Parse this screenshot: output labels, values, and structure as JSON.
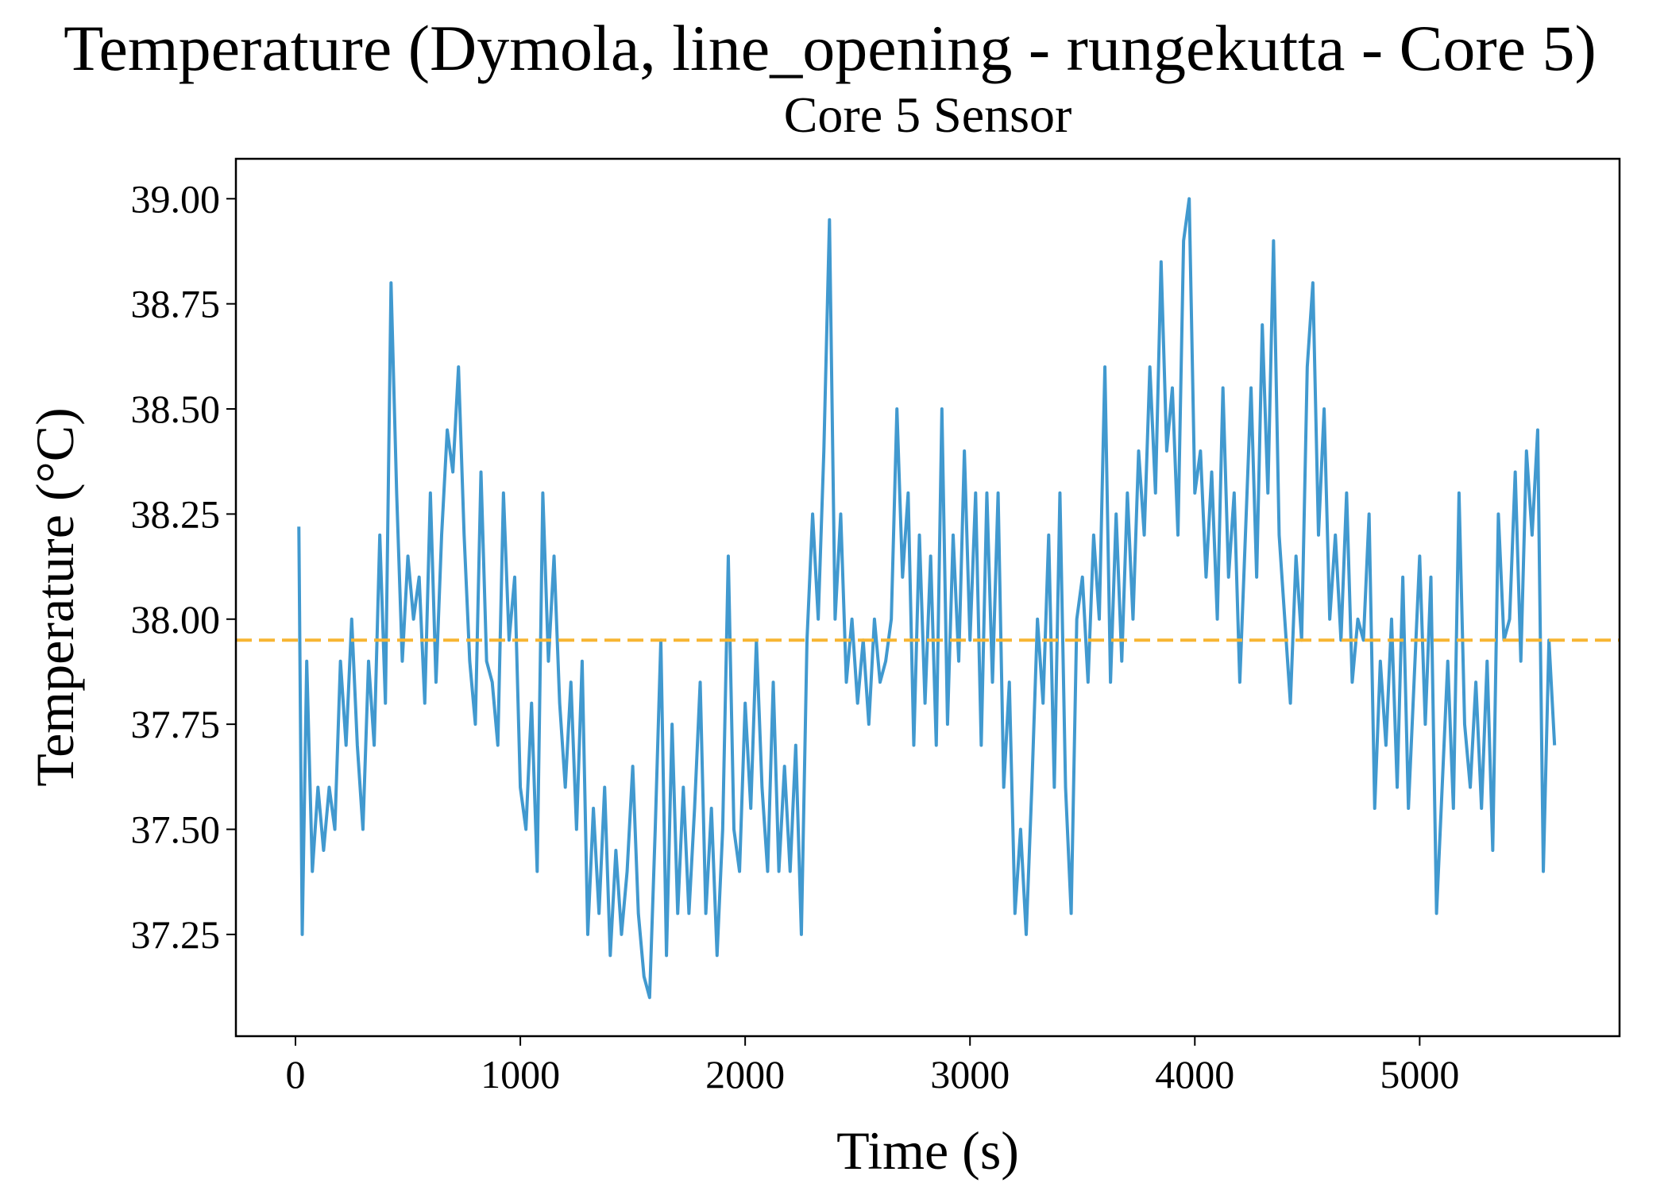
{
  "chart_data": {
    "type": "line",
    "title": "Temperature (Dymola, line_opening - rungekutta - Core 5)",
    "subtitle": "Core 5 Sensor",
    "x_label": "Time (s)",
    "y_label": "Temperature (°C)",
    "xlim": [
      -265,
      5889
    ],
    "ylim": [
      37.008,
      39.095
    ],
    "xticks": [
      0,
      1000,
      2000,
      3000,
      4000,
      5000
    ],
    "yticks": [
      {
        "value": 37.25,
        "label": "37.25"
      },
      {
        "value": 37.5,
        "label": "37.50"
      },
      {
        "value": 37.75,
        "label": "37.75"
      },
      {
        "value": 38,
        "label": "38.00"
      },
      {
        "value": 38.25,
        "label": "38.25"
      },
      {
        "value": 38.5,
        "label": "38.50"
      },
      {
        "value": 38.75,
        "label": "38.75"
      },
      {
        "value": 39,
        "label": "39.00"
      }
    ],
    "reference_line": {
      "value": 37.95,
      "color": "#f7b532"
    },
    "series": [
      {
        "color": "#4199cf",
        "x": [
          15,
          30,
          50,
          75,
          100,
          125,
          150,
          175,
          200,
          225,
          250,
          275,
          300,
          325,
          350,
          375,
          400,
          425,
          450,
          475,
          500,
          525,
          550,
          575,
          600,
          625,
          650,
          675,
          700,
          725,
          750,
          775,
          800,
          825,
          850,
          875,
          900,
          925,
          950,
          975,
          1000,
          1025,
          1050,
          1075,
          1100,
          1125,
          1150,
          1175,
          1200,
          1225,
          1250,
          1275,
          1300,
          1325,
          1350,
          1375,
          1400,
          1425,
          1450,
          1475,
          1500,
          1525,
          1550,
          1575,
          1600,
          1625,
          1650,
          1675,
          1700,
          1725,
          1750,
          1775,
          1800,
          1825,
          1850,
          1875,
          1900,
          1925,
          1950,
          1975,
          2000,
          2025,
          2050,
          2075,
          2100,
          2125,
          2150,
          2175,
          2200,
          2225,
          2250,
          2275,
          2300,
          2325,
          2350,
          2375,
          2400,
          2425,
          2450,
          2475,
          2500,
          2525,
          2550,
          2575,
          2600,
          2625,
          2650,
          2675,
          2700,
          2725,
          2750,
          2775,
          2800,
          2825,
          2850,
          2875,
          2900,
          2925,
          2950,
          2975,
          3000,
          3025,
          3050,
          3075,
          3100,
          3125,
          3150,
          3175,
          3200,
          3225,
          3250,
          3275,
          3300,
          3325,
          3350,
          3375,
          3400,
          3425,
          3450,
          3475,
          3500,
          3525,
          3550,
          3575,
          3600,
          3625,
          3650,
          3675,
          3700,
          3725,
          3750,
          3775,
          3800,
          3825,
          3850,
          3875,
          3900,
          3925,
          3950,
          3975,
          4000,
          4025,
          4050,
          4075,
          4100,
          4125,
          4150,
          4175,
          4200,
          4225,
          4250,
          4275,
          4300,
          4325,
          4350,
          4375,
          4400,
          4425,
          4450,
          4475,
          4500,
          4525,
          4550,
          4575,
          4600,
          4625,
          4650,
          4675,
          4700,
          4725,
          4750,
          4775,
          4800,
          4825,
          4850,
          4875,
          4900,
          4925,
          4950,
          4975,
          5000,
          5025,
          5050,
          5075,
          5100,
          5125,
          5150,
          5175,
          5200,
          5225,
          5250,
          5275,
          5300,
          5325,
          5350,
          5375,
          5400,
          5425,
          5450,
          5475,
          5500,
          5525,
          5550,
          5575,
          5600
        ],
        "values": [
          38.22,
          37.25,
          37.9,
          37.4,
          37.6,
          37.45,
          37.6,
          37.5,
          37.9,
          37.7,
          38.0,
          37.7,
          37.5,
          37.9,
          37.7,
          38.2,
          37.8,
          38.8,
          38.3,
          37.9,
          38.15,
          38.0,
          38.1,
          37.8,
          38.3,
          37.85,
          38.2,
          38.45,
          38.35,
          38.6,
          38.2,
          37.9,
          37.75,
          38.35,
          37.9,
          37.85,
          37.7,
          38.3,
          37.95,
          38.1,
          37.6,
          37.5,
          37.8,
          37.4,
          38.3,
          37.9,
          38.15,
          37.8,
          37.6,
          37.85,
          37.5,
          37.9,
          37.25,
          37.55,
          37.3,
          37.6,
          37.2,
          37.45,
          37.25,
          37.4,
          37.65,
          37.3,
          37.15,
          37.1,
          37.5,
          37.95,
          37.2,
          37.75,
          37.3,
          37.6,
          37.3,
          37.55,
          37.85,
          37.3,
          37.55,
          37.2,
          37.5,
          38.15,
          37.5,
          37.4,
          37.8,
          37.55,
          37.95,
          37.6,
          37.4,
          37.85,
          37.4,
          37.65,
          37.4,
          37.7,
          37.25,
          37.95,
          38.25,
          38.0,
          38.4,
          38.95,
          38.0,
          38.25,
          37.85,
          38.0,
          37.8,
          37.95,
          37.75,
          38.0,
          37.85,
          37.9,
          38.0,
          38.5,
          38.1,
          38.3,
          37.7,
          38.2,
          37.8,
          38.15,
          37.7,
          38.5,
          37.75,
          38.2,
          37.9,
          38.4,
          37.95,
          38.3,
          37.7,
          38.3,
          37.85,
          38.3,
          37.6,
          37.85,
          37.3,
          37.5,
          37.25,
          37.6,
          38.0,
          37.8,
          38.2,
          37.6,
          38.3,
          37.6,
          37.3,
          38.0,
          38.1,
          37.85,
          38.2,
          38.0,
          38.6,
          37.85,
          38.25,
          37.9,
          38.3,
          38.0,
          38.4,
          38.2,
          38.6,
          38.3,
          38.85,
          38.4,
          38.55,
          38.2,
          38.9,
          39.0,
          38.3,
          38.4,
          38.1,
          38.35,
          38.0,
          38.55,
          38.1,
          38.3,
          37.85,
          38.2,
          38.55,
          38.1,
          38.7,
          38.3,
          38.9,
          38.2,
          38.0,
          37.8,
          38.15,
          37.95,
          38.6,
          38.8,
          38.2,
          38.5,
          38.0,
          38.2,
          37.95,
          38.3,
          37.85,
          38.0,
          37.95,
          38.25,
          37.55,
          37.9,
          37.7,
          38.0,
          37.6,
          38.1,
          37.55,
          37.85,
          38.15,
          37.75,
          38.1,
          37.3,
          37.6,
          37.9,
          37.55,
          38.3,
          37.75,
          37.6,
          37.85,
          37.55,
          37.9,
          37.45,
          38.25,
          37.95,
          38.0,
          38.35,
          37.9,
          38.4,
          38.2,
          38.45,
          37.4,
          37.95,
          37.7
        ]
      }
    ]
  }
}
